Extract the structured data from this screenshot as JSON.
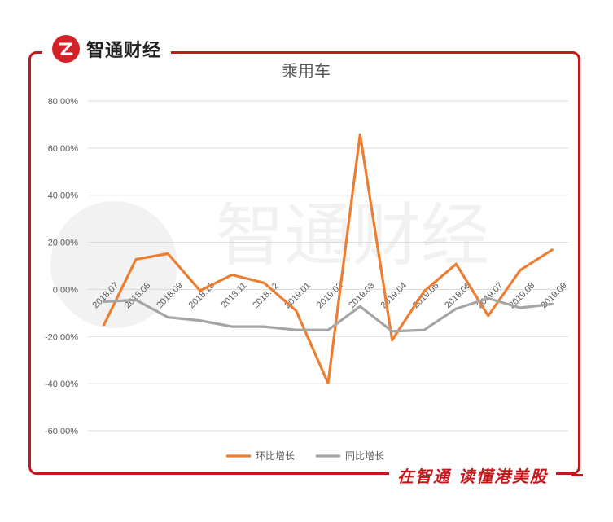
{
  "brand": {
    "name": "智通财经",
    "watermark": "智通财经"
  },
  "slogan": "在智通  读懂港美股",
  "colors": {
    "brand_red": "#c8161d",
    "series_mom": "#ed7d31",
    "series_yoy": "#a5a5a5",
    "grid": "#d9d9d9"
  },
  "chart_data": {
    "type": "line",
    "title": "乘用车",
    "xlabel": "",
    "ylabel": "",
    "ylim": [
      -60,
      80
    ],
    "ytick_step": 20,
    "ytick_labels": [
      "80.00%",
      "60.00%",
      "40.00%",
      "20.00%",
      "0.00%",
      "-20.00%",
      "-40.00%",
      "-60.00%"
    ],
    "grid": true,
    "legend_position": "bottom",
    "categories": [
      "2018.07",
      "2018.08",
      "2018.09",
      "2018.10",
      "2018.11",
      "2018.12",
      "2019.01",
      "2019.02",
      "2019.03",
      "2019.04",
      "2019.05",
      "2019.06",
      "2019.07",
      "2019.08",
      "2019.09"
    ],
    "series": [
      {
        "name": "环比增长",
        "color": "#ed7d31",
        "values": [
          -15.0,
          12.8,
          15.2,
          -0.5,
          6.2,
          2.8,
          -9.0,
          -39.8,
          65.8,
          -21.5,
          -0.8,
          10.8,
          -11.2,
          8.2,
          16.8
        ]
      },
      {
        "name": "同比增长",
        "color": "#a5a5a5",
        "values": [
          -5.2,
          -4.5,
          -11.8,
          -13.2,
          -15.8,
          -15.8,
          -17.2,
          -17.2,
          -7.2,
          -17.8,
          -17.2,
          -8.2,
          -3.8,
          -7.8,
          -6.2
        ]
      }
    ]
  }
}
